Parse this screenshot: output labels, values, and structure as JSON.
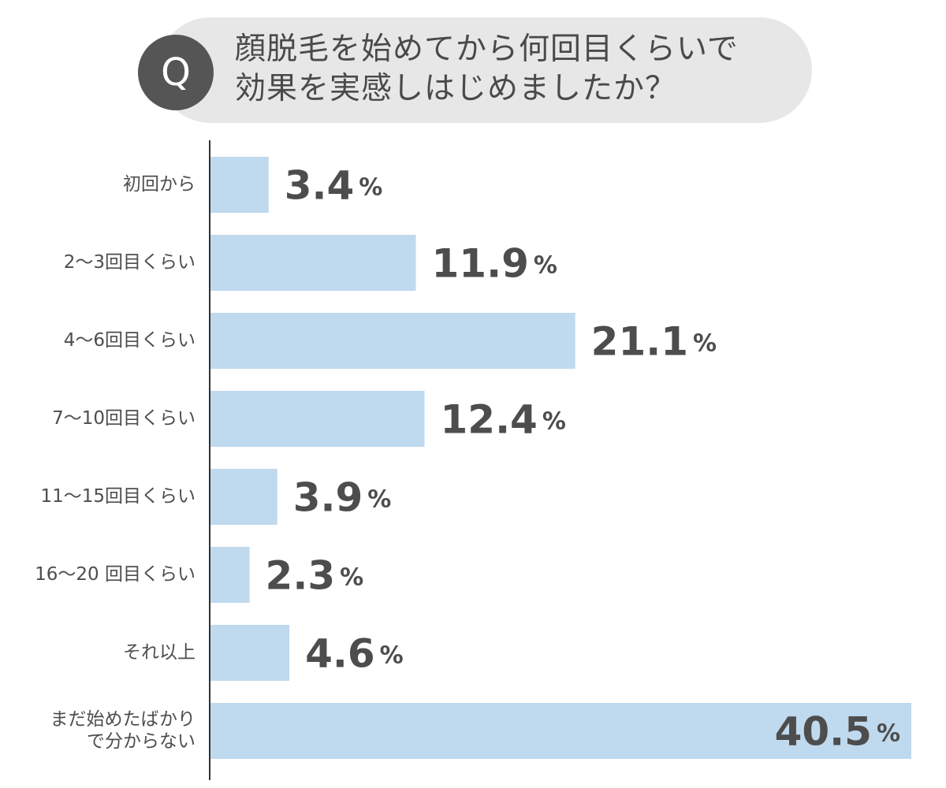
{
  "question": {
    "badge": "Q",
    "line1": "顔脱毛を始めてから何回目くらいで",
    "line2": "効果を実感しはじめましたか？"
  },
  "chart_data": {
    "type": "bar",
    "orientation": "horizontal",
    "categories": [
      [
        "初回から"
      ],
      [
        "2～3回目くらい"
      ],
      [
        "4～6回目くらい"
      ],
      [
        "7～10回目くらい"
      ],
      [
        "11～15回目くらい"
      ],
      [
        "16～20 回目くらい"
      ],
      [
        "それ以上"
      ],
      [
        "まだ始めたばかり",
        "で分からない"
      ]
    ],
    "values": [
      3.4,
      11.9,
      21.1,
      12.4,
      3.9,
      2.3,
      4.6,
      40.5
    ],
    "value_labels": [
      "3.4",
      "11.9",
      "21.1",
      "12.4",
      "3.9",
      "2.3",
      "4.6",
      "40.5"
    ],
    "unit": "%",
    "xlim": [
      0,
      40.5
    ],
    "grid": false,
    "colors": {
      "bar": "#bfd9ee",
      "text": "#4d4d4d",
      "axis": "#333333"
    }
  }
}
